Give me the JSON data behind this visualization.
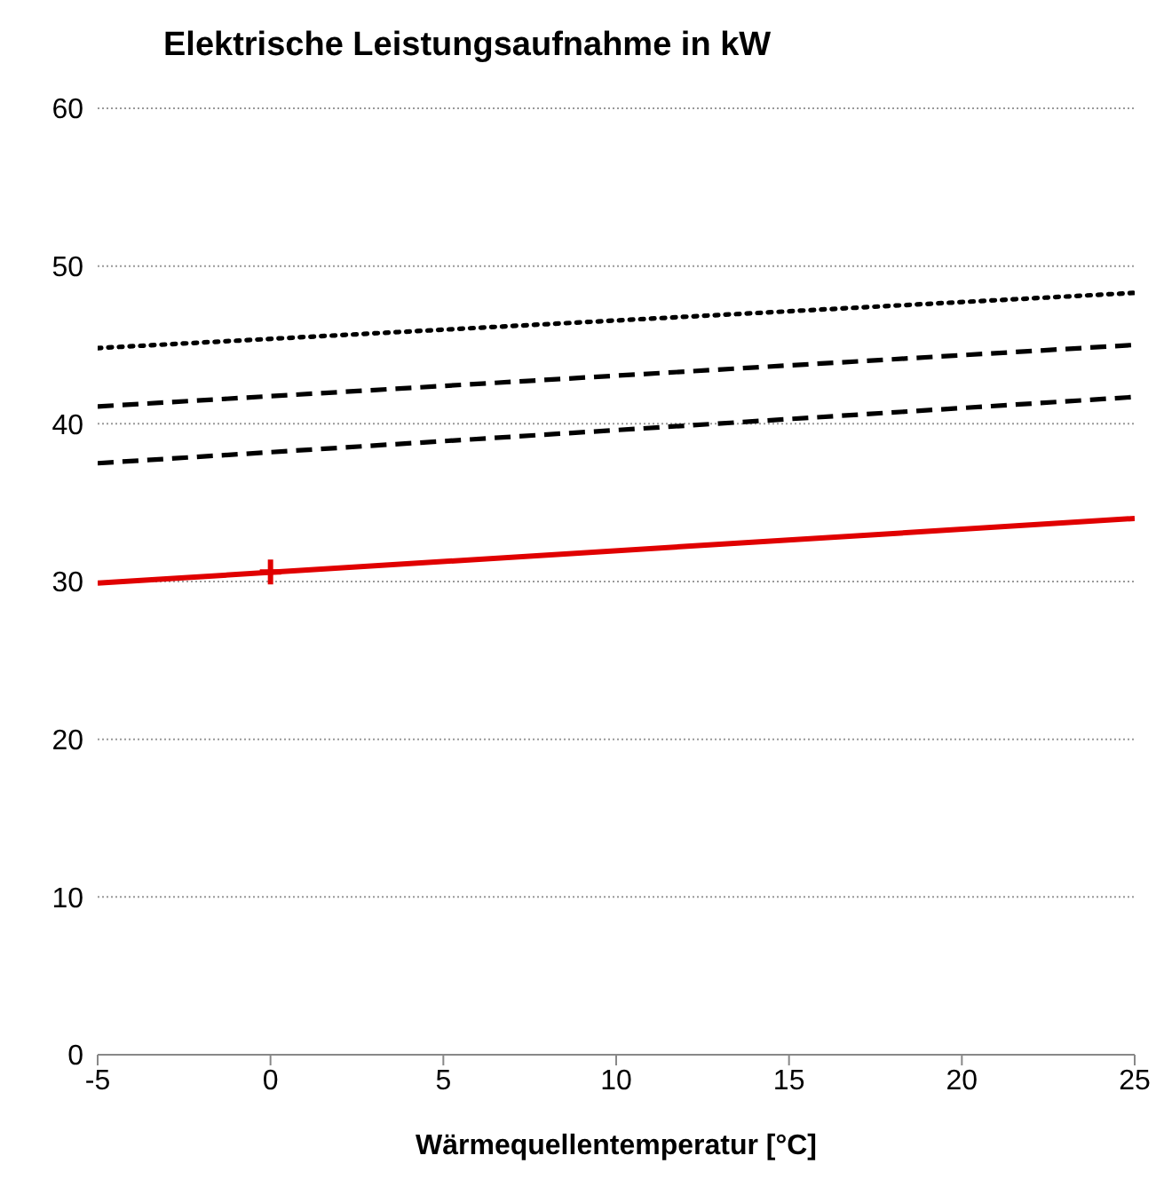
{
  "chart_data": {
    "type": "line",
    "title": "Elektrische Leistungsaufnahme in kW",
    "xlabel": "Wärmequellentemperatur [°C]",
    "x": [
      -5,
      25
    ],
    "series": [
      {
        "color": "#000000",
        "values": [
          44.8,
          48.3
        ],
        "line_style": "dotted"
      },
      {
        "color": "#000000",
        "values": [
          41.1,
          45.0
        ],
        "line_style": "dashed"
      },
      {
        "color": "#000000",
        "values": [
          37.5,
          41.7
        ],
        "line_style": "dashed"
      },
      {
        "color": "#e00000",
        "values": [
          29.9,
          34.0
        ],
        "line_style": "solid"
      },
      {
        "type": "scatter",
        "color": "#e00000",
        "x": [
          0
        ],
        "values": [
          30.6
        ],
        "marker": "cross"
      }
    ],
    "xlim": [
      -5,
      25
    ],
    "xticks": [
      -5,
      0,
      5,
      10,
      15,
      20,
      25
    ],
    "ylim": [
      0,
      60
    ],
    "yticks": [
      0,
      10,
      20,
      30,
      40,
      50,
      60
    ],
    "grid": "y",
    "marker": "none"
  }
}
